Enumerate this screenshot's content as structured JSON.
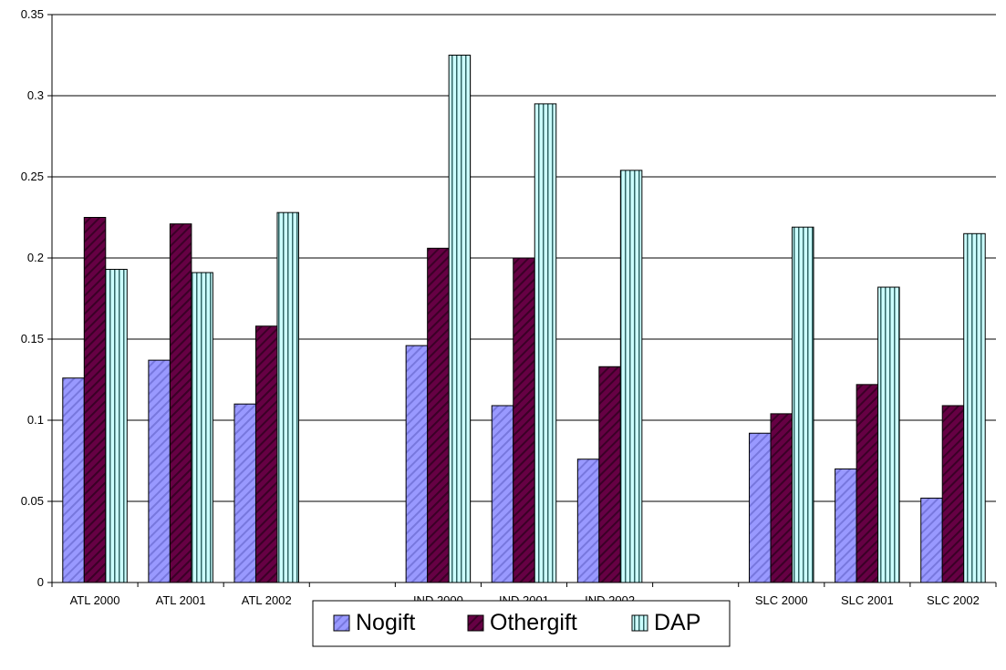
{
  "chart_data": {
    "type": "bar",
    "title": "",
    "xlabel": "",
    "ylabel": "",
    "categories": [
      "ATL 2000",
      "ATL 2001",
      "ATL 2002",
      ".",
      "IND 2000",
      "IND 2001",
      "IND 2002",
      ".",
      "SLC 2000",
      "SLC 2001",
      "SLC 2002"
    ],
    "series": [
      {
        "name": "Nogift",
        "color": "#9999ff",
        "pattern": "diagonal-stripes",
        "values": [
          0.126,
          0.137,
          0.11,
          null,
          0.146,
          0.109,
          0.076,
          null,
          0.092,
          0.07,
          0.052
        ]
      },
      {
        "name": "Othergift",
        "color": "#660044",
        "pattern": "diagonal-stripes",
        "values": [
          0.225,
          0.221,
          0.158,
          null,
          0.206,
          0.2,
          0.133,
          null,
          0.104,
          0.122,
          0.109
        ]
      },
      {
        "name": "DAP",
        "color": "#ccffff",
        "pattern": "vertical-stripes",
        "values": [
          0.193,
          0.191,
          0.228,
          null,
          0.325,
          0.295,
          0.254,
          null,
          0.219,
          0.182,
          0.215
        ]
      }
    ],
    "ylim": [
      0,
      0.35
    ],
    "yticks": [
      "0",
      "0.05",
      "0.1",
      "0.15",
      "0.2",
      "0.25",
      "0.3",
      "0.35"
    ],
    "grid": true,
    "legend_position": "bottom-center"
  }
}
